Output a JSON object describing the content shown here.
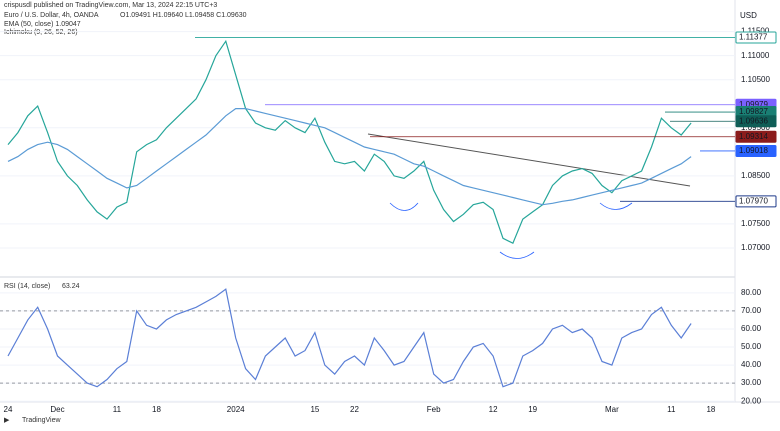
{
  "header": {
    "publisher": "crispusdl published on TradingView.com, Mar 13, 2024 22:15 UTC+3",
    "symbol": "Euro / U.S. Dollar, 4h, OANDA",
    "ohlc": "O1.09491 H1.09640 L1.09458 C1.09630",
    "ema": "EMA (50, close) 1.09047",
    "ichimoku": "Ichimoku (9, 26, 52, 26)",
    "currency": "USD",
    "logo": "TradingView"
  },
  "chart_data": [
    {
      "type": "line",
      "categories": [
        "24",
        null,
        null,
        null,
        null,
        "Dec",
        null,
        null,
        null,
        null,
        null,
        "11",
        null,
        null,
        null,
        "18",
        null,
        null,
        null,
        null,
        null,
        null,
        null,
        "2024",
        null,
        null,
        null,
        null,
        null,
        null,
        null,
        "15",
        null,
        null,
        null,
        "22",
        null,
        null,
        null,
        null,
        null,
        null,
        null,
        "Feb",
        null,
        null,
        null,
        null,
        null,
        "12",
        null,
        null,
        null,
        "19",
        null,
        null,
        null,
        null,
        null,
        null,
        null,
        "Mar",
        null,
        null,
        null,
        null,
        null,
        "11",
        null,
        null,
        null,
        "18"
      ],
      "series": [
        {
          "color": "#26a69a",
          "values": [
            1.0915,
            1.094,
            1.0975,
            1.0995,
            1.094,
            1.088,
            1.085,
            1.083,
            1.08,
            1.0775,
            1.076,
            1.0785,
            1.0795,
            1.09,
            1.0915,
            1.0925,
            1.095,
            1.097,
            1.099,
            1.101,
            1.105,
            1.11,
            1.113,
            1.106,
            1.099,
            1.096,
            1.095,
            1.0945,
            1.0965,
            1.095,
            1.094,
            1.097,
            1.092,
            1.088,
            1.0875,
            1.088,
            1.086,
            1.0895,
            1.088,
            1.085,
            1.0845,
            1.086,
            1.088,
            1.082,
            1.078,
            1.0755,
            1.077,
            1.079,
            1.0795,
            1.078,
            1.072,
            1.071,
            1.076,
            1.0775,
            1.079,
            1.083,
            1.085,
            1.086,
            1.0865,
            1.0855,
            1.083,
            1.0815,
            1.084,
            1.085,
            1.086,
            1.091,
            1.097,
            1.095,
            1.0935,
            1.096,
            null,
            null
          ]
        },
        {
          "color": "#5b9bd5",
          "values": [
            1.088,
            1.089,
            1.0905,
            1.0915,
            1.092,
            1.0915,
            1.0905,
            1.089,
            1.0875,
            1.086,
            1.0845,
            1.0835,
            1.0825,
            1.083,
            1.0845,
            1.086,
            1.0875,
            1.089,
            1.0905,
            1.092,
            1.0935,
            1.0955,
            1.0975,
            1.099,
            1.099,
            1.0985,
            1.098,
            1.0975,
            1.097,
            1.0965,
            1.096,
            1.0955,
            1.095,
            1.094,
            1.093,
            1.092,
            1.091,
            1.0905,
            1.09,
            1.0895,
            1.0885,
            1.0875,
            1.087,
            1.086,
            1.085,
            1.084,
            1.083,
            1.0825,
            1.082,
            1.0815,
            1.081,
            1.0805,
            1.08,
            1.0795,
            1.079,
            1.0793,
            1.0797,
            1.08,
            1.0805,
            1.081,
            1.0815,
            1.082,
            1.0825,
            1.083,
            1.0835,
            1.0845,
            1.0855,
            1.0865,
            1.0875,
            1.089,
            null,
            null
          ]
        }
      ],
      "ylim": [
        1.065,
        1.1195
      ],
      "yticks": [
        {
          "value": 1.07,
          "label": "1.07000"
        },
        {
          "value": 1.075,
          "label": "1.07500"
        },
        {
          "value": 1.085,
          "label": "1.08500"
        },
        {
          "value": 1.095,
          "label": "1.09500"
        },
        {
          "value": 1.105,
          "label": "1.10500"
        },
        {
          "value": 1.11,
          "label": "1.11000"
        },
        {
          "value": 1.115,
          "label": "1.11500"
        }
      ],
      "levels": [
        {
          "value": 1.11377,
          "color": "#26a69a",
          "style": "outline"
        },
        {
          "value": 1.09979,
          "color": "#7b61ff",
          "style": "fill"
        },
        {
          "value": 1.09827,
          "color": "#1a7f74",
          "style": "fill"
        },
        {
          "value": 1.09636,
          "color": "#0f5e57",
          "style": "fill"
        },
        {
          "value": 1.09314,
          "color": "#8b1c1c",
          "style": "fill"
        },
        {
          "value": 1.09018,
          "color": "#2962ff",
          "style": "fill"
        },
        {
          "value": 1.0797,
          "label": "1.07970",
          "color": "#1e3a8a",
          "style": "outline"
        }
      ]
    },
    {
      "type": "line",
      "title": "RSI (14, close)",
      "last": 63.24,
      "series": [
        {
          "color": "#5b7fd6",
          "values": [
            45,
            55,
            65,
            72,
            60,
            45,
            40,
            35,
            30,
            28,
            32,
            38,
            42,
            70,
            62,
            60,
            65,
            68,
            70,
            72,
            75,
            78,
            82,
            55,
            38,
            32,
            45,
            50,
            55,
            45,
            48,
            58,
            40,
            35,
            42,
            45,
            40,
            55,
            48,
            40,
            42,
            50,
            58,
            35,
            30,
            32,
            42,
            50,
            52,
            45,
            28,
            30,
            45,
            48,
            52,
            60,
            62,
            58,
            60,
            55,
            42,
            40,
            55,
            58,
            60,
            68,
            72,
            62,
            55,
            63,
            null,
            null
          ]
        }
      ],
      "ylim": [
        19,
        86
      ],
      "yticks": [
        {
          "value": 20,
          "label": "20.00"
        },
        {
          "value": 30,
          "label": "30.00"
        },
        {
          "value": 40,
          "label": "40.00"
        },
        {
          "value": 50,
          "label": "50.00"
        },
        {
          "value": 60,
          "label": "60.00"
        },
        {
          "value": 70,
          "label": "70.00"
        },
        {
          "value": 80,
          "label": "80.00"
        }
      ],
      "bands": [
        70,
        30
      ]
    }
  ]
}
